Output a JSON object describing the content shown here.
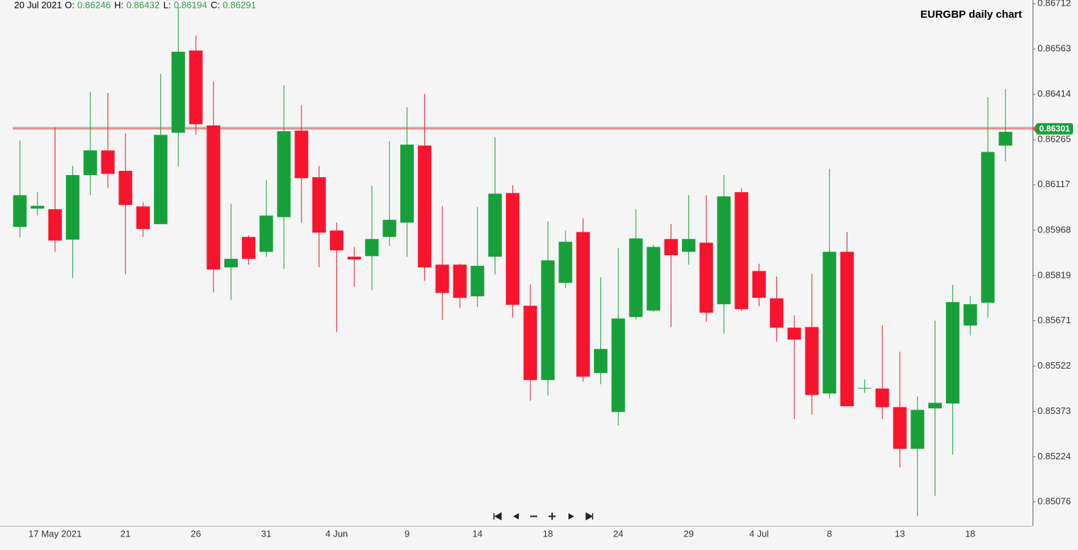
{
  "chart_data": {
    "type": "candlestick",
    "title": "EURGBP daily chart",
    "header": {
      "date": "20 Jul 2021",
      "labels": [
        "O:",
        "H:",
        "L:",
        "C:"
      ]
    },
    "categories": [
      null,
      null,
      "17 May 2021",
      null,
      null,
      null,
      "21",
      null,
      null,
      null,
      "26",
      null,
      null,
      null,
      "31",
      null,
      null,
      null,
      "4 Jun",
      null,
      null,
      null,
      "9",
      null,
      null,
      null,
      "14",
      null,
      null,
      null,
      "18",
      null,
      null,
      null,
      "24",
      null,
      null,
      null,
      "29",
      null,
      null,
      null,
      "4 Jul",
      null,
      null,
      null,
      "8",
      null,
      null,
      null,
      "13",
      null,
      null,
      null,
      "18",
      null,
      null
    ],
    "open": [
      0.85979,
      0.86039,
      0.86037,
      0.85937,
      0.86149,
      0.8623,
      0.86163,
      0.86046,
      0.85988,
      0.86288,
      0.86558,
      0.86312,
      0.85846,
      0.85946,
      0.85897,
      0.86011,
      0.86295,
      0.86142,
      0.85967,
      0.85881,
      0.85883,
      0.85946,
      0.85993,
      0.86246,
      0.85855,
      0.85855,
      0.85751,
      0.85881,
      0.8609,
      0.8572,
      0.85476,
      0.85795,
      0.85962,
      0.85499,
      0.85371,
      0.85683,
      0.85704,
      0.85939,
      0.85897,
      0.85927,
      0.85725,
      0.86093,
      0.85834,
      0.85744,
      0.85648,
      0.8565,
      0.85432,
      0.85897,
      0.85448,
      0.85448,
      0.85387,
      0.8525,
      0.85383,
      0.85399,
      0.85655,
      0.8573,
      0.86246
    ],
    "high": [
      0.86263,
      0.86093,
      0.86305,
      0.86179,
      0.86421,
      0.86419,
      0.86286,
      0.8606,
      0.86482,
      0.867,
      0.86607,
      0.86456,
      0.86055,
      0.85951,
      0.86132,
      0.86444,
      0.86379,
      0.86179,
      0.85993,
      0.85913,
      0.86114,
      0.8626,
      0.86372,
      0.86416,
      0.86048,
      0.85858,
      0.86044,
      0.86274,
      0.86116,
      0.8579,
      0.85997,
      0.85967,
      0.86007,
      0.85813,
      0.85909,
      0.86037,
      0.8592,
      0.85988,
      0.86083,
      0.86083,
      0.86149,
      0.86107,
      0.85858,
      0.85816,
      0.85688,
      0.85825,
      0.8617,
      0.85962,
      0.85478,
      0.85655,
      0.85569,
      0.85422,
      0.85671,
      0.85788,
      0.85751,
      0.86405,
      0.86432
    ],
    "low": [
      0.85944,
      0.86016,
      0.85897,
      0.85811,
      0.86083,
      0.86107,
      0.85823,
      0.85946,
      0.85988,
      0.86177,
      0.86281,
      0.85764,
      0.85739,
      0.85855,
      0.85881,
      0.85841,
      0.85993,
      0.85846,
      0.85634,
      0.85783,
      0.85771,
      0.85916,
      0.85881,
      0.85802,
      0.85674,
      0.85713,
      0.85716,
      0.85823,
      0.85681,
      0.85408,
      0.85425,
      0.85778,
      0.85471,
      0.85462,
      0.85327,
      0.85674,
      0.85699,
      0.8565,
      0.85855,
      0.85667,
      0.85629,
      0.85702,
      0.85718,
      0.85602,
      0.85348,
      0.85362,
      0.85415,
      0.8539,
      0.85434,
      0.85348,
      0.85189,
      0.85029,
      0.85096,
      0.85231,
      0.85622,
      0.85681,
      0.86194
    ],
    "close": [
      0.86083,
      0.86048,
      0.85934,
      0.86149,
      0.8623,
      0.86153,
      0.86051,
      0.85972,
      0.86281,
      0.86554,
      0.86316,
      0.85839,
      0.85874,
      0.85874,
      0.86016,
      0.86293,
      0.86139,
      0.8596,
      0.85902,
      0.85872,
      0.85939,
      0.86002,
      0.86249,
      0.85846,
      0.85762,
      0.85746,
      0.85851,
      0.86088,
      0.85723,
      0.85476,
      0.85869,
      0.8593,
      0.85487,
      0.85578,
      0.85678,
      0.85941,
      0.85913,
      0.85886,
      0.85939,
      0.85697,
      0.86079,
      0.85709,
      0.85746,
      0.85648,
      0.85609,
      0.85427,
      0.85897,
      0.8539,
      0.8545,
      0.85387,
      0.8525,
      0.85378,
      0.85401,
      0.85732,
      0.85725,
      0.86225,
      0.86291
    ],
    "up_color": "#17a03a",
    "down_color": "#f7142d",
    "price_lines": [
      {
        "value": 0.86306,
        "color": "#6fbf6f"
      },
      {
        "value": 0.86301,
        "color": "#d9534f"
      }
    ],
    "badge_color": "#17a03a",
    "ylim": [
      0.84997,
      0.86724
    ],
    "yticks": [
      0.86712,
      0.86563,
      0.86414,
      0.86265,
      0.86117,
      0.85968,
      0.85819,
      0.85671,
      0.85522,
      0.85373,
      0.85224,
      0.85076
    ]
  }
}
